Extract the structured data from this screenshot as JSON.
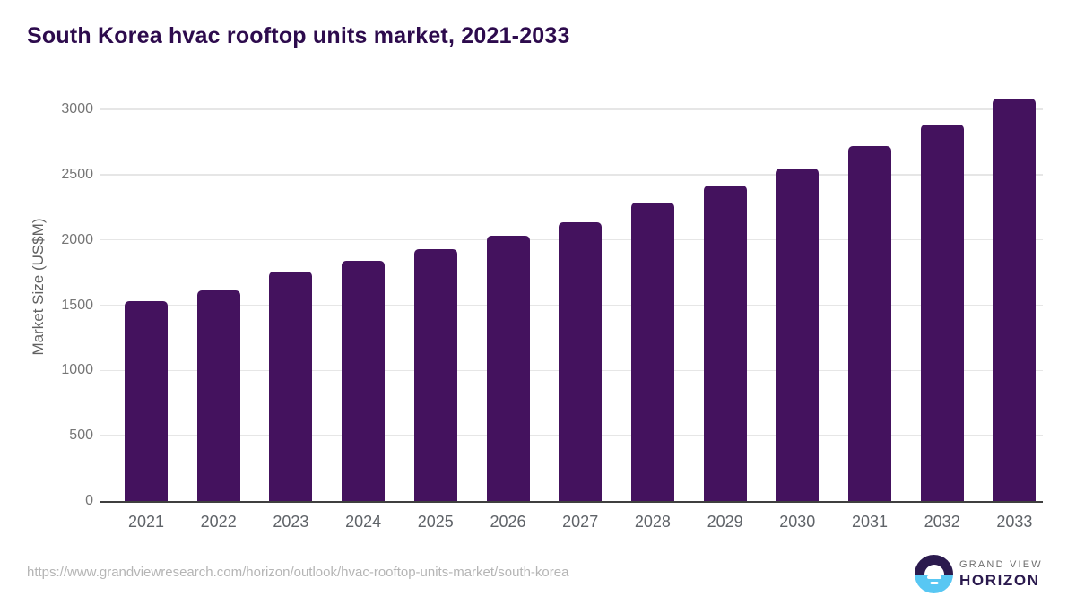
{
  "page": {
    "title": "South Korea hvac rooftop units market, 2021-2033",
    "source_url": "https://www.grandviewresearch.com/horizon/outlook/hvac-rooftop-units-market/south-korea"
  },
  "chart_data": {
    "type": "bar",
    "title": "South Korea hvac rooftop units market, 2021-2033",
    "categories": [
      "2021",
      "2022",
      "2023",
      "2024",
      "2025",
      "2026",
      "2027",
      "2028",
      "2029",
      "2030",
      "2031",
      "2032",
      "2033"
    ],
    "values": [
      1530,
      1610,
      1755,
      1840,
      1930,
      2030,
      2135,
      2285,
      2415,
      2550,
      2720,
      2885,
      3080
    ],
    "xlabel": "",
    "ylabel": "Market Size (US$M)",
    "ylim": [
      0,
      3000
    ],
    "yticks": [
      0,
      500,
      1000,
      1500,
      2000,
      2500,
      3000
    ],
    "grid": true,
    "legend": false,
    "bar_color": "#44125e"
  },
  "logo": {
    "brand_line1": "GRAND VIEW",
    "brand_line2": "HORIZON"
  },
  "colors": {
    "background": "#ffffff",
    "title": "#2d0b4d",
    "bar": "#44125e",
    "axis_text": "#616161",
    "tick_text": "#757575",
    "xtick_text": "#5f6368",
    "gridline": "#e6e6e6",
    "axis_line": "#3f3f3f",
    "url_text": "#b5b5b5",
    "logo_dark": "#2b1a4e",
    "logo_blue": "#58c7f3",
    "logo_gray": "#6e6e6e"
  }
}
